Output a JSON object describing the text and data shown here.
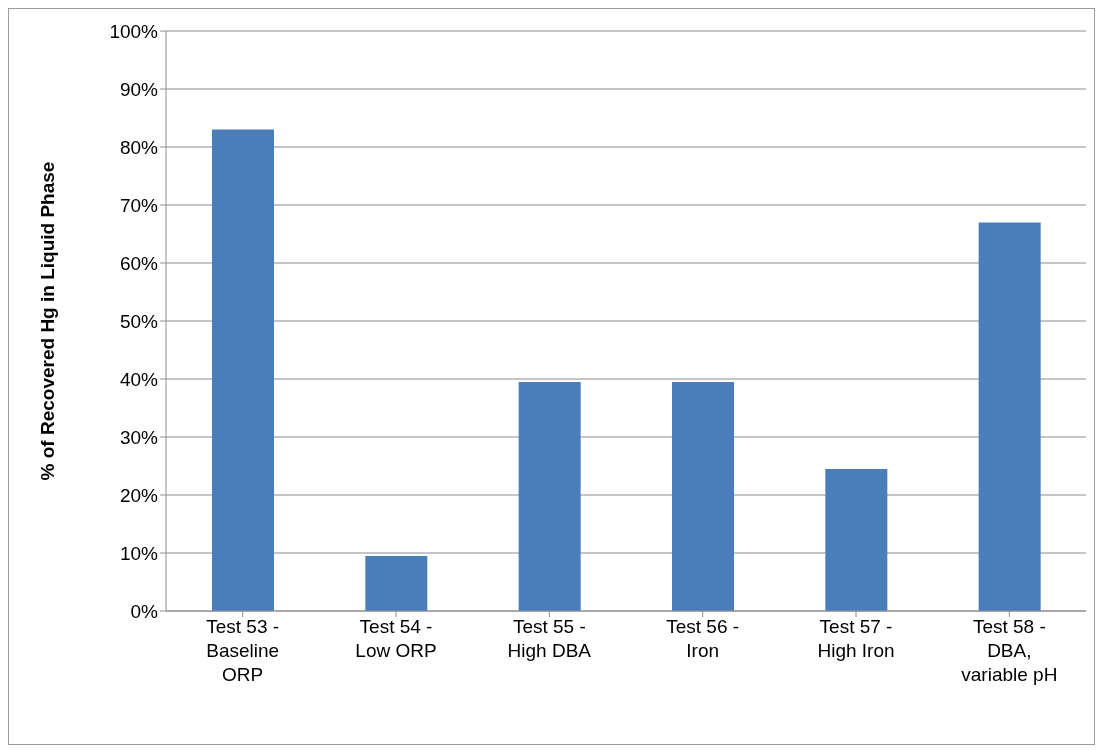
{
  "chart_data": {
    "type": "bar",
    "ylabel": "% of Recovered Hg in Liquid Phase",
    "categories": [
      "Test 53  -\nBaseline\nORP",
      "Test 54  -\nLow ORP",
      "Test 55  -\nHigh DBA",
      "Test 56  -\nIron",
      "Test 57 -\nHigh Iron",
      "Test 58 -\nDBA,\nvariable pH"
    ],
    "values": [
      83,
      9.5,
      39.5,
      39.5,
      24.5,
      67
    ],
    "color": "#4a7ebb",
    "ylim": [
      0,
      100
    ],
    "yticks": [
      {
        "value": 0,
        "label": "0%"
      },
      {
        "value": 10,
        "label": "10%"
      },
      {
        "value": 20,
        "label": "20%"
      },
      {
        "value": 30,
        "label": "30%"
      },
      {
        "value": 40,
        "label": "40%"
      },
      {
        "value": 50,
        "label": "50%"
      },
      {
        "value": 60,
        "label": "60%"
      },
      {
        "value": 70,
        "label": "70%"
      },
      {
        "value": 80,
        "label": "80%"
      },
      {
        "value": 90,
        "label": "90%"
      },
      {
        "value": 100,
        "label": "100%"
      }
    ],
    "grid": "y",
    "legend": false
  }
}
